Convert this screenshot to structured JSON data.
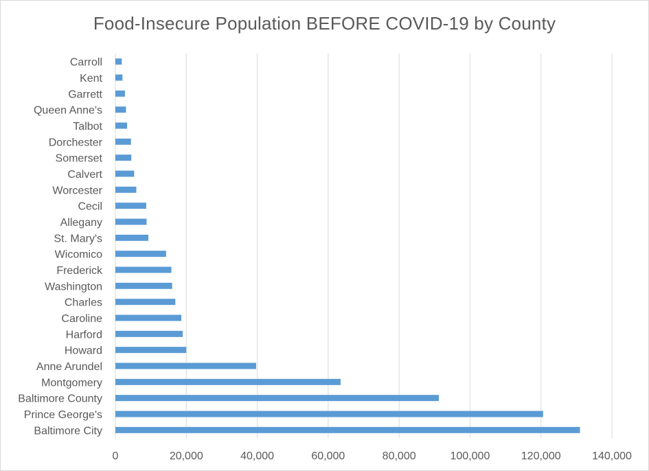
{
  "chart_data": {
    "type": "bar",
    "orientation": "horizontal",
    "title": "Food-Insecure Population BEFORE COVID-19 by County",
    "xlabel": "",
    "ylabel": "",
    "xlim": [
      0,
      140000
    ],
    "x_ticks": [
      0,
      20000,
      40000,
      60000,
      80000,
      100000,
      120000,
      140000
    ],
    "x_tick_labels": [
      "0",
      "20,000",
      "40,000",
      "60,000",
      "80,000",
      "100,000",
      "120,000",
      "140,000"
    ],
    "grid": "vertical",
    "legend": "none",
    "bar_color": "#5b9bd5",
    "grid_color": "#d9d9d9",
    "categories": [
      "Carroll",
      "Kent",
      "Garrett",
      "Queen Anne's",
      "Talbot",
      "Dorchester",
      "Somerset",
      "Calvert",
      "Worcester",
      "Cecil",
      "Allegany",
      "St. Mary's",
      "Wicomico",
      "Frederick",
      "Washington",
      "Charles",
      "Caroline",
      "Harford",
      "Howard",
      "Anne Arundel",
      "Montgomery",
      "Baltimore County",
      "Prince George's",
      "Baltimore City"
    ],
    "values": [
      1800,
      2000,
      2700,
      3000,
      3300,
      4400,
      4500,
      5300,
      5900,
      8700,
      8800,
      9300,
      14300,
      15800,
      16000,
      16900,
      18600,
      19000,
      20000,
      39700,
      63500,
      91200,
      120600,
      131000
    ]
  }
}
